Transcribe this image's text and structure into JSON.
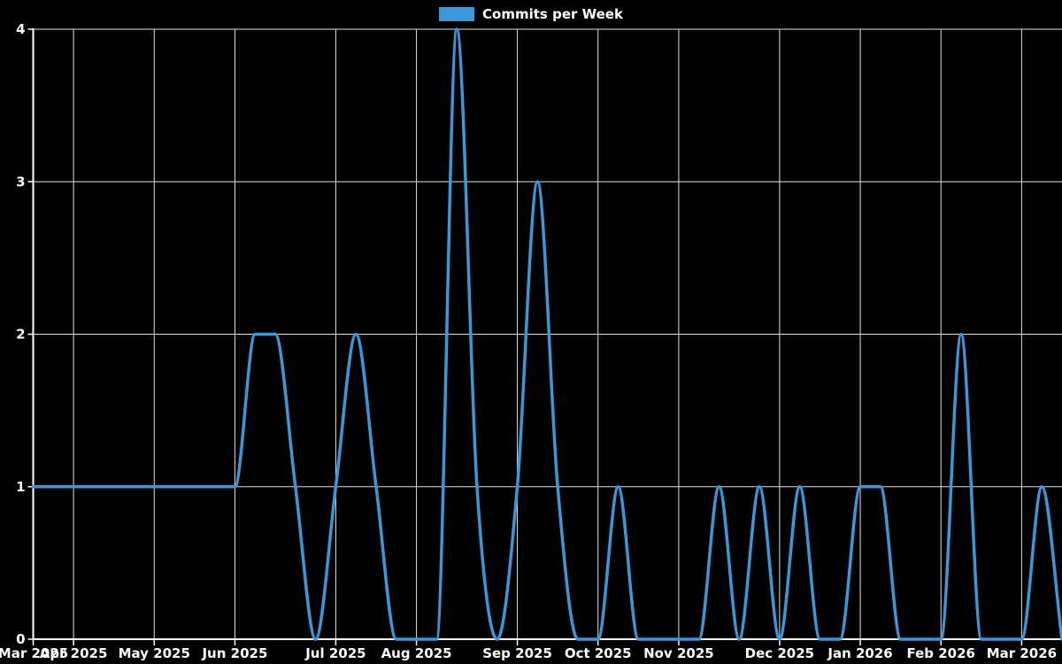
{
  "legend": {
    "label": "Commits per Week"
  },
  "colors": {
    "background": "#000000",
    "line": "#3b97d9",
    "swatch": "#3b97d9",
    "grid": "#e0e0e0",
    "axis": "#ffffff",
    "text": "#ffffff"
  },
  "chart_data": {
    "type": "line",
    "title": "Commits per Week",
    "legend_position": "top-center",
    "grid": true,
    "x_unit": "week-index",
    "xlabel": "",
    "ylabel": "",
    "ylim": [
      0,
      4
    ],
    "y_ticks": [
      0,
      1,
      2,
      3,
      4
    ],
    "x_tick_labels": [
      "Mar 2025",
      "Apr 2025",
      "May 2025",
      "Jun 2025",
      "Jul 2025",
      "Aug 2025",
      "Sep 2025",
      "Oct 2025",
      "Nov 2025",
      "Dec 2025",
      "Jan 2026",
      "Feb 2026",
      "Mar 2026"
    ],
    "x_tick_week_index": [
      0,
      2,
      6,
      10,
      15,
      19,
      24,
      28,
      32,
      37,
      41,
      45,
      49
    ],
    "series": [
      {
        "name": "Commits per Week",
        "values": [
          1,
          1,
          1,
          1,
          1,
          1,
          1,
          1,
          1,
          1,
          1,
          2,
          2,
          1,
          0,
          1,
          2,
          1,
          0,
          0,
          0,
          4,
          1,
          0,
          1,
          3,
          1,
          0,
          0,
          1,
          0,
          0,
          0,
          0,
          1,
          0,
          1,
          0,
          1,
          0,
          0,
          1,
          1,
          0,
          0,
          0,
          2,
          0,
          0,
          0,
          1,
          0
        ]
      }
    ]
  }
}
